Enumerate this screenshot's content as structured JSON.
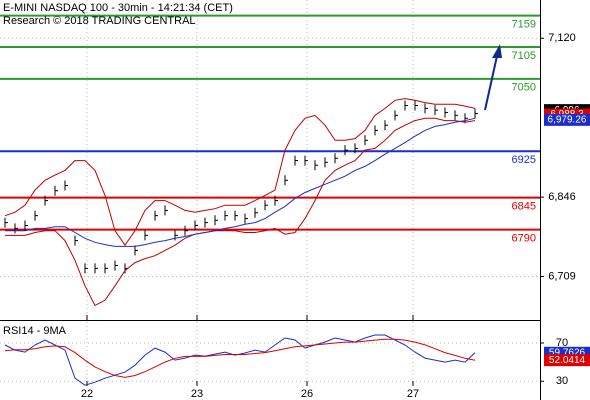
{
  "chart_data": [
    {
      "type": "price",
      "title": "E-MINI NASDAQ 100 - 30min - 14:21:34 (CET)",
      "subtitle": "Research © 2018 TRADING CENTRAL",
      "xlim": [
        -0.5,
        53.5
      ],
      "ylim": [
        6634,
        7186
      ],
      "yticks": [
        {
          "value": 7120,
          "label": "7,120"
        },
        {
          "value": 6846,
          "label": "6,846"
        },
        {
          "value": 6709,
          "label": "6,709"
        }
      ],
      "xticks": [
        {
          "value": 8.2,
          "label": "22"
        },
        {
          "value": 19.2,
          "label": "23"
        },
        {
          "value": 30.2,
          "label": "26"
        },
        {
          "value": 40.8,
          "label": "27"
        }
      ],
      "grid": true,
      "levels": [
        {
          "value": 7159,
          "color": "#2e9a2e"
        },
        {
          "value": 7105,
          "color": "#2e9a2e"
        },
        {
          "value": 7050,
          "color": "#2e9a2e"
        },
        {
          "value": 6925,
          "color": "#1a2fc8"
        },
        {
          "value": 6845,
          "color": "#e00000"
        },
        {
          "value": 6790,
          "color": "#e00000"
        }
      ],
      "tags": [
        {
          "value": 6996,
          "label": "6,996",
          "color": "#000000"
        },
        {
          "value": 6988.3,
          "label": "6,988.3",
          "color": "#e00000"
        },
        {
          "value": 6979.26,
          "label": "6,979.26",
          "color": "#1a2fc8"
        }
      ],
      "series": [
        {
          "style": "bar",
          "color": "#000000",
          "values": [
            6802,
            6792,
            6797,
            6814,
            6840,
            6857,
            6866,
            6771,
            6723,
            6723,
            6723,
            6728,
            6723,
            6754,
            6780,
            6814,
            6823,
            6780,
            6788,
            6797,
            6802,
            6806,
            6814,
            6814,
            6809,
            6819,
            6832,
            6840,
            6875,
            6909,
            6909,
            6901,
            6906,
            6913,
            6927,
            6930,
            6944,
            6961,
            6970,
            6987,
            7004,
            7004,
            6999,
            6996,
            6992,
            6987,
            6982,
            6990
          ]
        },
        {
          "style": "line",
          "color": "#c00000",
          "values": [
            6814,
            6820,
            6832,
            6858,
            6875,
            6884,
            6892,
            6909,
            6909,
            6892,
            6849,
            6788,
            6763,
            6788,
            6823,
            6840,
            6840,
            6832,
            6823,
            6820,
            6823,
            6826,
            6832,
            6832,
            6832,
            6840,
            6849,
            6858,
            6927,
            6961,
            6982,
            6987,
            6970,
            6944,
            6944,
            6947,
            6961,
            6987,
            6999,
            7013,
            7016,
            7013,
            7009,
            7006,
            7006,
            7006,
            7003,
            6999
          ]
        },
        {
          "style": "line",
          "color": "#c00000",
          "values": [
            6780,
            6780,
            6780,
            6785,
            6788,
            6788,
            6771,
            6737,
            6693,
            6659,
            6668,
            6693,
            6719,
            6733,
            6740,
            6745,
            6754,
            6763,
            6775,
            6782,
            6785,
            6788,
            6788,
            6788,
            6785,
            6785,
            6788,
            6792,
            6782,
            6785,
            6809,
            6840,
            6875,
            6892,
            6901,
            6909,
            6927,
            6930,
            6944,
            6961,
            6970,
            6978,
            6982,
            6982,
            6978,
            6978,
            6975,
            6978
          ]
        },
        {
          "style": "line",
          "color": "#1a2fc8",
          "values": [
            6788,
            6788,
            6788,
            6792,
            6792,
            6795,
            6795,
            6785,
            6775,
            6768,
            6764,
            6761,
            6761,
            6761,
            6764,
            6768,
            6771,
            6775,
            6778,
            6782,
            6785,
            6788,
            6792,
            6795,
            6799,
            6802,
            6809,
            6820,
            6830,
            6844,
            6854,
            6861,
            6868,
            6875,
            6882,
            6892,
            6899,
            6909,
            6920,
            6930,
            6940,
            6951,
            6961,
            6968,
            6971,
            6975,
            6978,
            6982
          ]
        }
      ]
    },
    {
      "type": "price",
      "title": "RSI14 - 9MA",
      "xlim": [
        -0.5,
        53.5
      ],
      "ylim": [
        25,
        92
      ],
      "yticks": [
        70,
        30
      ],
      "xticks": [
        {
          "value": 8.2,
          "label": "22"
        },
        {
          "value": 19.2,
          "label": "23"
        },
        {
          "value": 30.2,
          "label": "26"
        },
        {
          "value": 40.8,
          "label": "27"
        }
      ],
      "grid": true,
      "tags": [
        {
          "value": 59.7626,
          "label": "59.7626",
          "color": "#1a2fc8"
        },
        {
          "value": 52.0414,
          "label": "52.0414",
          "color": "#e00000"
        }
      ],
      "series": [
        {
          "style": "line",
          "color": "#1a2fc8",
          "values": [
            67.9,
            62.6,
            60.5,
            67.9,
            73.2,
            67.9,
            62.6,
            33.2,
            25.8,
            29,
            33.2,
            36.3,
            39.5,
            46.8,
            57.4,
            64.7,
            60.5,
            52.1,
            54.2,
            57.4,
            56.3,
            58.4,
            60.5,
            57.4,
            59.5,
            62.6,
            60.5,
            67.9,
            75.3,
            73.2,
            64.7,
            67.9,
            71.1,
            75.3,
            73.2,
            71.1,
            75.3,
            78.4,
            78.4,
            73.2,
            67.9,
            60.5,
            54.2,
            52.1,
            50,
            52.1,
            50,
            59.76
          ]
        },
        {
          "style": "line",
          "color": "#e00000",
          "values": [
            62,
            63,
            63,
            64,
            66,
            67,
            66,
            60,
            52,
            45,
            40,
            36,
            34,
            36,
            40,
            45,
            50,
            54,
            56,
            56,
            56,
            57,
            58,
            58,
            58,
            59,
            60,
            62,
            64,
            66,
            67,
            68,
            69,
            70,
            71,
            71,
            72,
            73,
            74,
            74,
            73,
            71,
            68,
            64,
            60,
            57,
            54,
            52.04
          ]
        }
      ]
    }
  ]
}
